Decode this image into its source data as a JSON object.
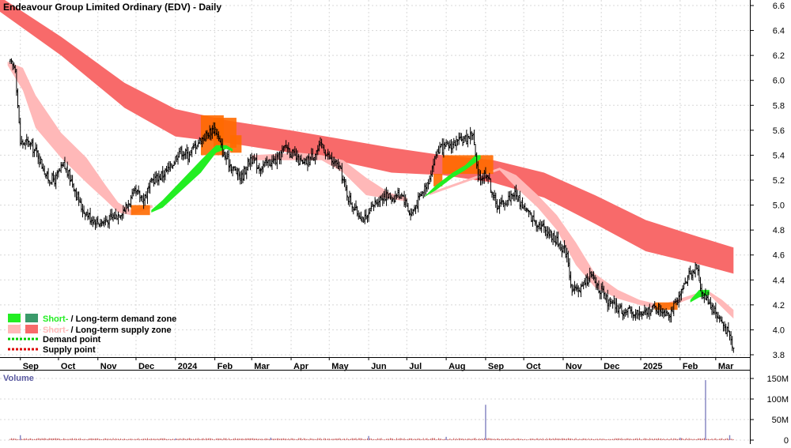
{
  "title": "Endeavour Group Limited Ordinary (EDV) - Daily",
  "colors": {
    "long_supply": "#f86a6a",
    "short_supply": "#ffb8b8",
    "short_demand": "#22ee22",
    "long_demand": "#3a9a6a",
    "orange_zone": "#ff6a00",
    "demand_point": "#00cc00",
    "supply_point": "#dd0000",
    "candle": "#000000",
    "volume_bar": "#8080c0",
    "volume_base": "#c04040",
    "grid": "#d8d8d8"
  },
  "legend": {
    "demand": {
      "short": "Short-",
      "sep": " / ",
      "long": "Long-term demand zone"
    },
    "supply": {
      "short": "Short-",
      "sep": " / ",
      "long": "Long-term supply zone"
    },
    "demand_point": "Demand point",
    "supply_point": "Supply point"
  },
  "volume_panel": {
    "label": "Volume",
    "ticks": [
      "150M",
      "100M",
      "50M",
      "0"
    ]
  },
  "chart_data": {
    "type": "line",
    "title": "Endeavour Group Limited Ordinary (EDV) - Daily",
    "xlabel": "",
    "ylabel": "",
    "ylim": [
      3.75,
      6.75
    ],
    "yticks": [
      3.8,
      4.0,
      4.2,
      4.4,
      4.6,
      4.8,
      5.0,
      5.2,
      5.4,
      5.6,
      5.8,
      6.0,
      6.2,
      6.4,
      6.6
    ],
    "ytick_labels": [
      "3.8",
      "4.0",
      "4.2",
      "4.4",
      "4.6",
      "4.8",
      "5.0",
      "5.2",
      "5.4",
      "5.6",
      "5.8",
      "6.0",
      "6.2",
      "6.4",
      "6.6"
    ],
    "grid": true,
    "legend_position": "bottom-left",
    "xticks": [
      {
        "label": "Sep",
        "t": 8
      },
      {
        "label": "Oct",
        "t": 38
      },
      {
        "label": "Nov",
        "t": 69
      },
      {
        "label": "Dec",
        "t": 99
      },
      {
        "label": "2024",
        "t": 130
      },
      {
        "label": "Feb",
        "t": 161
      },
      {
        "label": "Mar",
        "t": 190
      },
      {
        "label": "Apr",
        "t": 221
      },
      {
        "label": "May",
        "t": 251
      },
      {
        "label": "Jun",
        "t": 282
      },
      {
        "label": "Jul",
        "t": 312
      },
      {
        "label": "Aug",
        "t": 343
      },
      {
        "label": "Sep",
        "t": 374
      },
      {
        "label": "Oct",
        "t": 404
      },
      {
        "label": "Nov",
        "t": 435
      },
      {
        "label": "Dec",
        "t": 465
      },
      {
        "label": "2025",
        "t": 496
      },
      {
        "label": "Feb",
        "t": 527
      },
      {
        "label": "Mar",
        "t": 555
      }
    ],
    "t_range": [
      -8,
      580
    ],
    "price_path": [
      [
        0,
        6.14
      ],
      [
        4,
        6.1
      ],
      [
        8,
        5.5
      ],
      [
        15,
        5.5
      ],
      [
        22,
        5.4
      ],
      [
        29,
        5.22
      ],
      [
        35,
        5.2
      ],
      [
        42,
        5.32
      ],
      [
        49,
        5.18
      ],
      [
        56,
        4.98
      ],
      [
        63,
        4.9
      ],
      [
        70,
        4.86
      ],
      [
        77,
        4.88
      ],
      [
        84,
        4.92
      ],
      [
        91,
        4.98
      ],
      [
        98,
        5.1
      ],
      [
        105,
        5.05
      ],
      [
        112,
        5.2
      ],
      [
        119,
        5.24
      ],
      [
        126,
        5.3
      ],
      [
        133,
        5.44
      ],
      [
        140,
        5.4
      ],
      [
        147,
        5.5
      ],
      [
        154,
        5.56
      ],
      [
        161,
        5.62
      ],
      [
        168,
        5.4
      ],
      [
        175,
        5.3
      ],
      [
        182,
        5.22
      ],
      [
        189,
        5.38
      ],
      [
        196,
        5.3
      ],
      [
        203,
        5.34
      ],
      [
        210,
        5.36
      ],
      [
        217,
        5.48
      ],
      [
        224,
        5.38
      ],
      [
        231,
        5.32
      ],
      [
        238,
        5.4
      ],
      [
        245,
        5.48
      ],
      [
        252,
        5.36
      ],
      [
        259,
        5.3
      ],
      [
        266,
        5.06
      ],
      [
        273,
        4.94
      ],
      [
        280,
        4.88
      ],
      [
        287,
        5.02
      ],
      [
        294,
        5.08
      ],
      [
        301,
        5.06
      ],
      [
        308,
        5.1
      ],
      [
        315,
        4.92
      ],
      [
        322,
        5.06
      ],
      [
        329,
        5.2
      ],
      [
        336,
        5.44
      ],
      [
        343,
        5.46
      ],
      [
        350,
        5.5
      ],
      [
        357,
        5.52
      ],
      [
        364,
        5.58
      ],
      [
        368,
        5.2
      ],
      [
        375,
        5.26
      ],
      [
        382,
        5.0
      ],
      [
        389,
        5.02
      ],
      [
        396,
        5.1
      ],
      [
        403,
        5.0
      ],
      [
        410,
        4.9
      ],
      [
        417,
        4.84
      ],
      [
        424,
        4.78
      ],
      [
        431,
        4.7
      ],
      [
        438,
        4.62
      ],
      [
        442,
        4.3
      ],
      [
        449,
        4.34
      ],
      [
        456,
        4.44
      ],
      [
        463,
        4.34
      ],
      [
        470,
        4.22
      ],
      [
        477,
        4.18
      ],
      [
        484,
        4.14
      ],
      [
        491,
        4.14
      ],
      [
        498,
        4.12
      ],
      [
        505,
        4.18
      ],
      [
        512,
        4.16
      ],
      [
        519,
        4.14
      ],
      [
        526,
        4.24
      ],
      [
        533,
        4.44
      ],
      [
        540,
        4.5
      ],
      [
        544,
        4.3
      ],
      [
        550,
        4.22
      ],
      [
        556,
        4.12
      ],
      [
        562,
        4.02
      ],
      [
        566,
        3.95
      ],
      [
        569,
        3.84
      ]
    ],
    "bands": {
      "long_term_supply": [
        [
          -8,
          6.67,
          6.55
        ],
        [
          40,
          6.35,
          6.2
        ],
        [
          90,
          5.98,
          5.78
        ],
        [
          130,
          5.77,
          5.55
        ],
        [
          170,
          5.68,
          5.5
        ],
        [
          220,
          5.6,
          5.42
        ],
        [
          260,
          5.53,
          5.35
        ],
        [
          300,
          5.46,
          5.26
        ],
        [
          340,
          5.4,
          5.24
        ],
        [
          380,
          5.36,
          5.18
        ],
        [
          420,
          5.26,
          5.06
        ],
        [
          460,
          5.08,
          4.85
        ],
        [
          500,
          4.88,
          4.63
        ],
        [
          540,
          4.75,
          4.53
        ],
        [
          569,
          4.66,
          4.45
        ]
      ],
      "short_term_supply": [
        [
          -2,
          6.15,
          6.12
        ],
        [
          10,
          6.1,
          5.92
        ],
        [
          20,
          5.88,
          5.62
        ],
        [
          40,
          5.58,
          5.38
        ],
        [
          60,
          5.38,
          5.18
        ],
        [
          75,
          5.16,
          5.04
        ],
        [
          85,
          5.02,
          4.94
        ],
        [
          95,
          4.96,
          4.92
        ],
        [
          112,
          5.0,
          4.98
        ],
        [
          190,
          5.4,
          5.36
        ],
        [
          228,
          5.42,
          5.36
        ],
        [
          245,
          5.4,
          5.36
        ],
        [
          262,
          5.36,
          5.26
        ],
        [
          280,
          5.22,
          5.08
        ],
        [
          298,
          5.1,
          5.05
        ],
        [
          312,
          5.06,
          5.03
        ],
        [
          330,
          5.1,
          5.08
        ],
        [
          385,
          5.3,
          5.28
        ],
        [
          398,
          5.24,
          5.14
        ],
        [
          415,
          5.08,
          4.98
        ],
        [
          430,
          4.92,
          4.8
        ],
        [
          445,
          4.7,
          4.52
        ],
        [
          460,
          4.45,
          4.34
        ],
        [
          478,
          4.32,
          4.25
        ],
        [
          495,
          4.24,
          4.2
        ],
        [
          512,
          4.2,
          4.16
        ],
        [
          548,
          4.32,
          4.3
        ],
        [
          560,
          4.24,
          4.18
        ],
        [
          569,
          4.16,
          4.09
        ]
      ],
      "short_term_demand": [
        [
          111,
          4.96,
          4.94
        ],
        [
          120,
          5.04,
          4.98
        ],
        [
          135,
          5.2,
          5.12
        ],
        [
          150,
          5.36,
          5.26
        ],
        [
          162,
          5.48,
          5.42
        ],
        [
          170,
          5.48,
          5.45
        ],
        [
          175,
          5.45,
          5.43
        ],
        [
          325,
          5.06,
          5.06
        ],
        [
          335,
          5.16,
          5.12
        ],
        [
          348,
          5.26,
          5.22
        ],
        [
          358,
          5.32,
          5.28
        ],
        [
          366,
          5.4,
          5.34
        ],
        [
          370,
          5.4,
          5.37
        ],
        [
          535,
          4.24,
          4.22
        ],
        [
          542,
          4.32,
          4.26
        ],
        [
          550,
          4.32,
          4.28
        ]
      ],
      "orange_zones": [
        [
          95,
          110,
          4.92,
          5.0
        ],
        [
          150,
          168,
          5.4,
          5.72
        ],
        [
          160,
          178,
          5.46,
          5.7
        ],
        [
          173,
          182,
          5.42,
          5.56
        ],
        [
          333,
          340,
          5.15,
          5.25
        ],
        [
          340,
          380,
          5.25,
          5.4
        ],
        [
          507,
          525,
          4.16,
          4.22
        ]
      ]
    },
    "volume_spikes": [
      {
        "t": 8,
        "value": 12
      },
      {
        "t": 130,
        "value": 4
      },
      {
        "t": 205,
        "value": 6
      },
      {
        "t": 282,
        "value": 10
      },
      {
        "t": 343,
        "value": 8
      },
      {
        "t": 374,
        "value": 86
      },
      {
        "t": 527,
        "value": 6
      },
      {
        "t": 547,
        "value": 146
      },
      {
        "t": 566,
        "value": 12
      }
    ],
    "volume_ylim": [
      0,
      160
    ]
  }
}
